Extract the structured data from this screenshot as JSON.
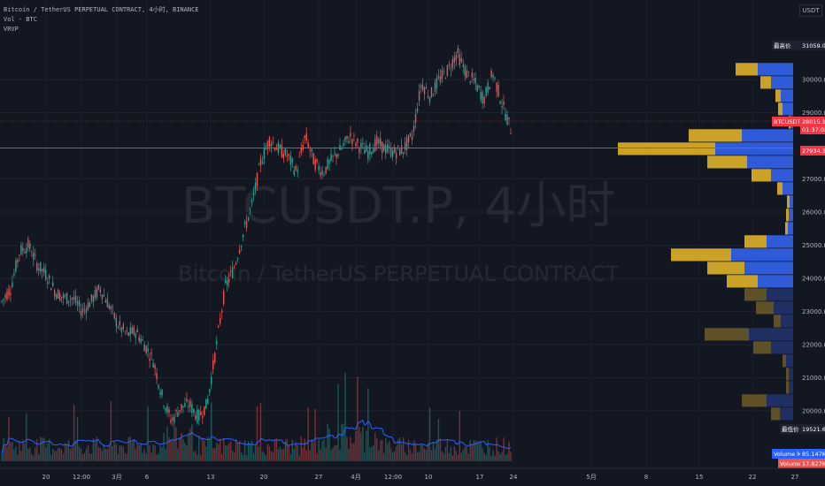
{
  "legend": {
    "symbol_line": "Bitcoin / TetherUS PERPETUAL CONTRACT, 4小时, BINANCE",
    "volume_line": "Vol · BTC",
    "vrvp_line": "VRVP"
  },
  "watermark": {
    "symbol": "BTCUSDT.P, 4小时",
    "description": "Bitcoin / TetherUS PERPETUAL CONTRACT"
  },
  "unit_button": "USDT",
  "price_axis": {
    "ticks": [
      "30000.0",
      "29000.0",
      "27000.0",
      "26000.0",
      "25000.0",
      "24000.0",
      "23000.0",
      "22000.0",
      "21000.0",
      "20000.0"
    ],
    "tick_values": [
      30000,
      29000,
      27000,
      26000,
      25000,
      24000,
      23000,
      22000,
      21000,
      20000
    ],
    "high_label": "最高价",
    "high_value": "31059.0",
    "low_label": "最低价",
    "low_value": "19521.6",
    "symbol_tag": "BTCUSDT.P",
    "current_price": "28015.1",
    "countdown": "01:37:02",
    "poc_price": "27934.3",
    "volume_ma_label": "Volume MA",
    "volume_ma_value": "85.147K",
    "volume_label": "Volume",
    "volume_value": "17.827K"
  },
  "time_axis": {
    "labels": [
      "20",
      "12:00",
      "3月",
      "6",
      "13",
      "20",
      "27",
      "4月",
      "12:00",
      "10",
      "17",
      "24",
      "5月",
      "8",
      "15",
      "22",
      "27"
    ]
  },
  "colors": {
    "background": "#131722",
    "up": "#26a69a",
    "down": "#ef5350",
    "vp_up": "#2f5bd8",
    "vp_down": "#c9a227",
    "vp_up_out": "#1f2f63",
    "vp_down_out": "#5e5128",
    "volume_ma": "#2962ff"
  },
  "chart_data": {
    "type": "candlestick",
    "yrange": [
      19000,
      31600
    ],
    "price_path": [
      23300,
      23700,
      24800,
      25000,
      24400,
      24100,
      23600,
      23400,
      23400,
      23000,
      23300,
      23700,
      23200,
      22600,
      22300,
      22400,
      22000,
      21500,
      20400,
      19700,
      20100,
      20200,
      19800,
      20200,
      21900,
      23700,
      24300,
      25300,
      26200,
      27500,
      28200,
      27900,
      27700,
      27200,
      28300,
      27500,
      27200,
      27600,
      27900,
      28300,
      28000,
      27800,
      28100,
      27900,
      27800,
      27900,
      28300,
      29900,
      29500,
      30000,
      30300,
      30800,
      30200,
      29900,
      29400,
      30200,
      29300,
      28500
    ],
    "high": 31059.0,
    "low": 19521.6,
    "current": 28015.1,
    "poc": 27934.3,
    "volume_profile": [
      {
        "price": 30300,
        "up": 40,
        "down": 25
      },
      {
        "price": 29900,
        "up": 25,
        "down": 12
      },
      {
        "price": 29500,
        "up": 14,
        "down": 6
      },
      {
        "price": 29100,
        "up": 12,
        "down": 5
      },
      {
        "price": 28700,
        "up": 3,
        "down": 2
      },
      {
        "price": 28300,
        "up": 58,
        "down": 60
      },
      {
        "price": 27900,
        "up": 88,
        "down": 110
      },
      {
        "price": 27500,
        "up": 52,
        "down": 45
      },
      {
        "price": 27100,
        "up": 25,
        "down": 22
      },
      {
        "price": 26700,
        "up": 12,
        "down": 6
      },
      {
        "price": 26300,
        "up": 4,
        "down": 3
      },
      {
        "price": 25900,
        "up": 5,
        "down": 3
      },
      {
        "price": 25500,
        "up": 6,
        "down": 3
      },
      {
        "price": 25100,
        "up": 30,
        "down": 25
      },
      {
        "price": 24700,
        "up": 70,
        "down": 68
      },
      {
        "price": 24300,
        "up": 55,
        "down": 42
      },
      {
        "price": 23900,
        "up": 40,
        "down": 35
      },
      {
        "price": 23500,
        "up": 30,
        "down": 25
      },
      {
        "price": 23100,
        "up": 22,
        "down": 20
      },
      {
        "price": 22700,
        "up": 14,
        "down": 8
      },
      {
        "price": 22300,
        "up": 50,
        "down": 50
      },
      {
        "price": 21900,
        "up": 25,
        "down": 20
      },
      {
        "price": 21500,
        "up": 8,
        "down": 4
      },
      {
        "price": 21100,
        "up": 5,
        "down": 3
      },
      {
        "price": 20700,
        "up": 5,
        "down": 3
      },
      {
        "price": 20300,
        "up": 30,
        "down": 28
      },
      {
        "price": 19900,
        "up": 15,
        "down": 10
      }
    ]
  }
}
